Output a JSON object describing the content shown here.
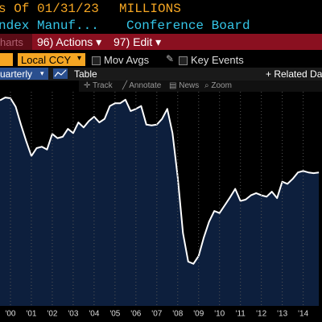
{
  "header": {
    "as_of": "s Of 01/31/23",
    "units": "MILLIONS",
    "ticker": "ndex Manuf...",
    "source": "Conference Board"
  },
  "menu": {
    "charts": "harts",
    "actions": "96) Actions ▾",
    "edit": "97) Edit ▾"
  },
  "toolbar": {
    "currency": "Local CCY",
    "mov_avgs": "Mov Avgs",
    "key_events": "Key Events",
    "frequency": "uarterly",
    "table": "Table",
    "related": "+ Related Da"
  },
  "chart_tools": [
    "Track",
    "Annotate",
    "News",
    "Zoom"
  ],
  "chart_data": {
    "type": "area",
    "x": [
      2000,
      2000.25,
      2000.5,
      2000.75,
      2001,
      2001.25,
      2001.5,
      2001.75,
      2002,
      2002.25,
      2002.5,
      2002.75,
      2003,
      2003.25,
      2003.5,
      2003.75,
      2004,
      2004.25,
      2004.5,
      2004.75,
      2005,
      2005.25,
      2005.5,
      2005.75,
      2006,
      2006.25,
      2006.5,
      2006.75,
      2007,
      2007.25,
      2007.5,
      2007.75,
      2008,
      2008.25,
      2008.5,
      2008.75,
      2009,
      2009.25,
      2009.5,
      2009.75,
      2010,
      2010.25,
      2010.5,
      2010.75,
      2011,
      2011.25,
      2011.5,
      2011.75,
      2012,
      2012.25,
      2012.5,
      2012.75,
      2013,
      2013.25,
      2013.5,
      2013.75,
      2014,
      2014.25,
      2014.5,
      2014.75,
      2015,
      2015.25
    ],
    "series": [
      {
        "color": "#ffffff",
        "fill": "#0d1f3d",
        "values": [
          48800,
          49200,
          49100,
          47900,
          45400,
          43100,
          41000,
          42100,
          42300,
          41900,
          44100,
          43500,
          43700,
          44800,
          44200,
          45700,
          45000,
          45900,
          46500,
          45700,
          46200,
          48000,
          48400,
          48400,
          48900,
          47300,
          47600,
          48000,
          45400,
          45300,
          45400,
          46200,
          47600,
          44200,
          38000,
          30200,
          26200,
          25900,
          27000,
          29600,
          31800,
          33300,
          33000,
          34100,
          35200,
          36400,
          34700,
          34900,
          35500,
          35800,
          35500,
          35300,
          36000,
          35100,
          37400,
          37100,
          37800,
          38700,
          38900,
          38700,
          38600,
          38700
        ]
      }
    ],
    "xlim": [
      2000,
      2015.4
    ],
    "ylim": [
      20000,
      50000
    ],
    "xticks": [
      {
        "value": 2000.5,
        "label": "'00"
      },
      {
        "value": 2001.5,
        "label": "'01"
      },
      {
        "value": 2002.5,
        "label": "'02"
      },
      {
        "value": 2003.5,
        "label": "'03"
      },
      {
        "value": 2004.5,
        "label": "'04"
      },
      {
        "value": 2005.5,
        "label": "'05"
      },
      {
        "value": 2006.5,
        "label": "'06"
      },
      {
        "value": 2007.5,
        "label": "'07"
      },
      {
        "value": 2008.5,
        "label": "'08"
      },
      {
        "value": 2009.5,
        "label": "'09"
      },
      {
        "value": 2010.5,
        "label": "'10"
      },
      {
        "value": 2011.5,
        "label": "'11"
      },
      {
        "value": 2012.5,
        "label": "'12"
      },
      {
        "value": 2013.5,
        "label": "'13"
      },
      {
        "value": 2014.5,
        "label": "'14"
      }
    ],
    "grid": true
  }
}
